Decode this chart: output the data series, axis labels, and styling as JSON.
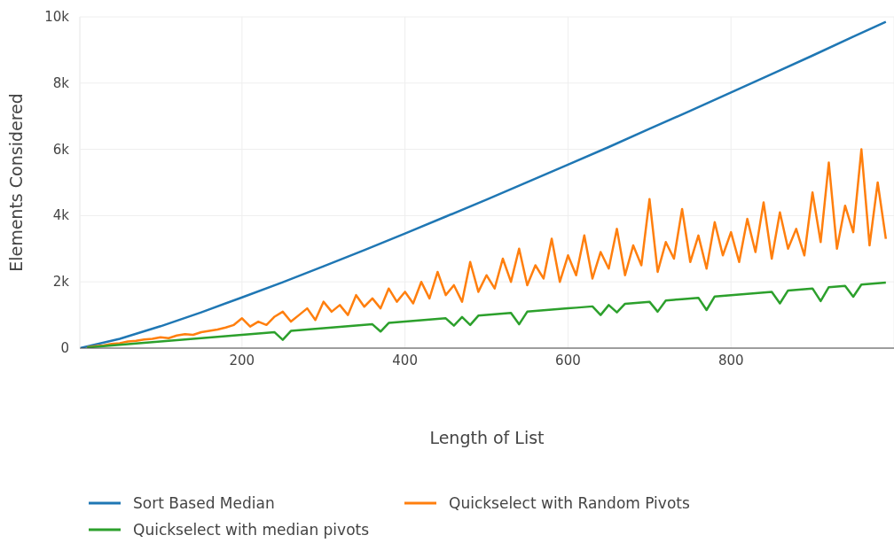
{
  "chart_data": {
    "type": "line",
    "xlabel": "Length of List",
    "ylabel": "Elements Considered",
    "xlim": [
      1,
      1000
    ],
    "ylim": [
      0,
      10000
    ],
    "xticks": [
      200,
      400,
      600,
      800
    ],
    "yticks": [
      0,
      {
        "value": 2000,
        "label": "2k"
      },
      {
        "value": 4000,
        "label": "4k"
      },
      {
        "value": 6000,
        "label": "6k"
      },
      {
        "value": 8000,
        "label": "8k"
      },
      {
        "value": 10000,
        "label": "10k"
      }
    ],
    "grid": true,
    "legend": "bottom",
    "marker": "none",
    "line_style": "solid",
    "series": [
      {
        "name": "Sort Based Median",
        "color": "#1f77b4",
        "x": [
          1,
          50,
          100,
          150,
          200,
          250,
          300,
          350,
          400,
          450,
          500,
          550,
          600,
          650,
          700,
          750,
          800,
          850,
          900,
          950,
          990
        ],
        "values": [
          0,
          280,
          660,
          1080,
          1530,
          1990,
          2470,
          2960,
          3460,
          3970,
          4480,
          5010,
          5540,
          6070,
          6620,
          7160,
          7720,
          8270,
          8830,
          9400,
          9850
        ]
      },
      {
        "name": "Quickselect with Random Pivots",
        "color": "#ff7f0e",
        "x": [
          10,
          20,
          30,
          40,
          50,
          60,
          70,
          80,
          90,
          100,
          110,
          120,
          130,
          140,
          150,
          160,
          170,
          180,
          190,
          200,
          210,
          220,
          230,
          240,
          250,
          260,
          270,
          280,
          290,
          300,
          310,
          320,
          330,
          340,
          350,
          360,
          370,
          380,
          390,
          400,
          410,
          420,
          430,
          440,
          450,
          460,
          470,
          480,
          490,
          500,
          510,
          520,
          530,
          540,
          550,
          560,
          570,
          580,
          590,
          600,
          610,
          620,
          630,
          640,
          650,
          660,
          670,
          680,
          690,
          700,
          710,
          720,
          730,
          740,
          750,
          760,
          770,
          780,
          790,
          800,
          810,
          820,
          830,
          840,
          850,
          860,
          870,
          880,
          890,
          900,
          910,
          920,
          930,
          940,
          950,
          960,
          970,
          980,
          990
        ],
        "values": [
          30,
          60,
          80,
          130,
          150,
          200,
          220,
          260,
          280,
          330,
          300,
          380,
          420,
          400,
          480,
          520,
          560,
          620,
          700,
          900,
          650,
          800,
          700,
          950,
          1100,
          800,
          1000,
          1200,
          850,
          1400,
          1100,
          1300,
          1000,
          1600,
          1250,
          1500,
          1200,
          1800,
          1400,
          1700,
          1350,
          2000,
          1500,
          2300,
          1600,
          1900,
          1400,
          2600,
          1700,
          2200,
          1800,
          2700,
          2000,
          3000,
          1900,
          2500,
          2100,
          3300,
          2000,
          2800,
          2200,
          3400,
          2100,
          2900,
          2400,
          3600,
          2200,
          3100,
          2500,
          4500,
          2300,
          3200,
          2700,
          4200,
          2600,
          3400,
          2400,
          3800,
          2800,
          3500,
          2600,
          3900,
          2900,
          4400,
          2700,
          4100,
          3000,
          3600,
          2800,
          4700,
          3200,
          5600,
          3000,
          4300,
          3500,
          6000,
          3100,
          5000,
          3300
        ]
      },
      {
        "name": "Quickselect with median pivots",
        "color": "#2ca02c",
        "x": [
          10,
          20,
          30,
          40,
          50,
          60,
          70,
          80,
          90,
          100,
          110,
          120,
          130,
          140,
          150,
          160,
          170,
          180,
          190,
          200,
          210,
          220,
          230,
          240,
          250,
          260,
          270,
          280,
          290,
          300,
          310,
          320,
          330,
          340,
          350,
          360,
          370,
          380,
          390,
          400,
          410,
          420,
          430,
          440,
          450,
          460,
          470,
          480,
          490,
          500,
          510,
          520,
          530,
          540,
          550,
          560,
          570,
          580,
          590,
          600,
          610,
          620,
          630,
          640,
          650,
          660,
          670,
          680,
          690,
          700,
          710,
          720,
          730,
          740,
          750,
          760,
          770,
          780,
          790,
          800,
          810,
          820,
          830,
          840,
          850,
          860,
          870,
          880,
          890,
          900,
          910,
          920,
          930,
          940,
          950,
          960,
          970,
          980,
          990
        ],
        "values": [
          20,
          40,
          60,
          80,
          100,
          120,
          140,
          160,
          180,
          200,
          220,
          240,
          260,
          280,
          300,
          320,
          340,
          360,
          380,
          400,
          420,
          440,
          460,
          480,
          250,
          520,
          540,
          560,
          580,
          600,
          620,
          640,
          660,
          680,
          700,
          720,
          500,
          760,
          780,
          800,
          820,
          840,
          860,
          880,
          900,
          680,
          940,
          700,
          980,
          1000,
          1020,
          1040,
          1060,
          720,
          1100,
          1120,
          1140,
          1160,
          1180,
          1200,
          1220,
          1240,
          1260,
          1000,
          1300,
          1080,
          1340,
          1360,
          1380,
          1400,
          1100,
          1440,
          1460,
          1480,
          1500,
          1520,
          1150,
          1560,
          1580,
          1600,
          1620,
          1640,
          1660,
          1680,
          1700,
          1350,
          1740,
          1760,
          1780,
          1800,
          1420,
          1840,
          1860,
          1880,
          1550,
          1920,
          1940,
          1960,
          1980
        ]
      }
    ]
  }
}
